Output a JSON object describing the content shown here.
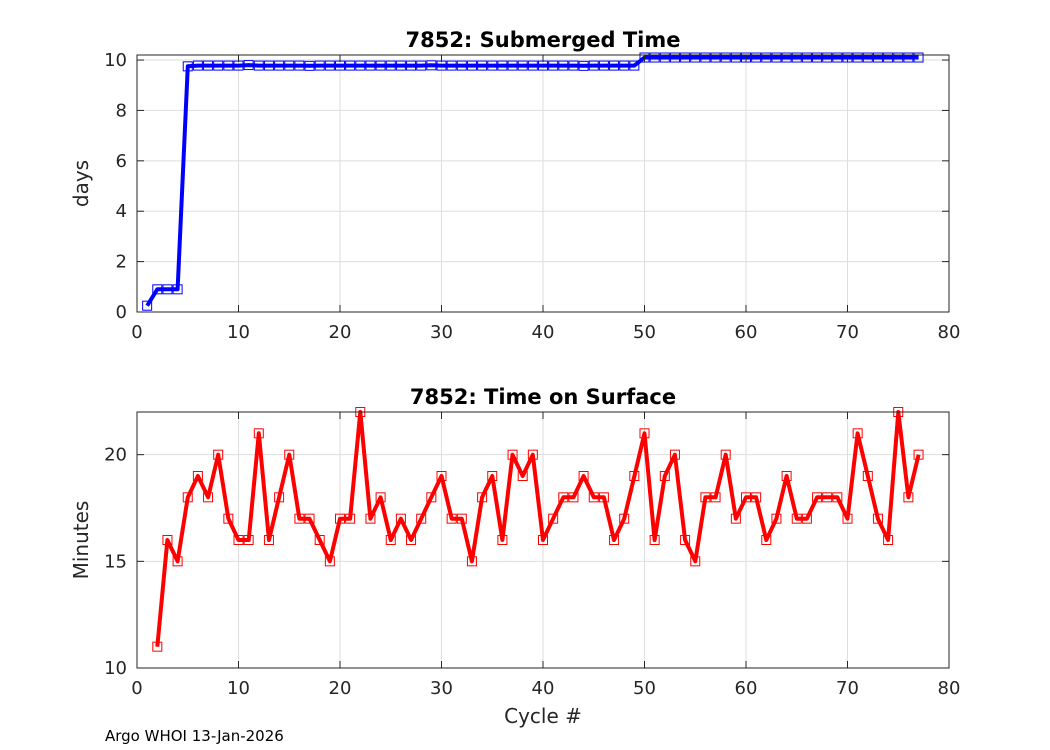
{
  "footer": "Argo WHOI 13-Jan-2026",
  "chart_data": [
    {
      "type": "line",
      "title": "7852: Submerged Time",
      "xlabel": "",
      "ylabel": "days",
      "xlim": [
        0,
        80
      ],
      "ylim": [
        0,
        10.2
      ],
      "xticks": [
        0,
        10,
        20,
        30,
        40,
        50,
        60,
        70,
        80
      ],
      "yticks": [
        0,
        2,
        4,
        6,
        8,
        10
      ],
      "grid": true,
      "color": "#0000ff",
      "marker": "square",
      "x": [
        1,
        2,
        3,
        4,
        5,
        6,
        7,
        8,
        9,
        10,
        11,
        12,
        13,
        14,
        15,
        16,
        17,
        18,
        19,
        20,
        21,
        22,
        23,
        24,
        25,
        26,
        27,
        28,
        29,
        30,
        31,
        32,
        33,
        34,
        35,
        36,
        37,
        38,
        39,
        40,
        41,
        42,
        43,
        44,
        45,
        46,
        47,
        48,
        49,
        50,
        51,
        52,
        53,
        54,
        55,
        56,
        57,
        58,
        59,
        60,
        61,
        62,
        63,
        64,
        65,
        66,
        67,
        68,
        69,
        70,
        71,
        72,
        73,
        74,
        75,
        76,
        77
      ],
      "y": [
        0.25,
        0.9,
        0.9,
        0.9,
        9.75,
        9.78,
        9.78,
        9.78,
        9.78,
        9.78,
        9.8,
        9.78,
        9.78,
        9.78,
        9.78,
        9.78,
        9.77,
        9.78,
        9.78,
        9.78,
        9.78,
        9.78,
        9.78,
        9.78,
        9.78,
        9.78,
        9.78,
        9.78,
        9.79,
        9.78,
        9.78,
        9.78,
        9.78,
        9.78,
        9.78,
        9.78,
        9.78,
        9.78,
        9.78,
        9.78,
        9.78,
        9.78,
        9.78,
        9.77,
        9.78,
        9.78,
        9.78,
        9.78,
        9.78,
        10.1,
        10.1,
        10.1,
        10.1,
        10.1,
        10.1,
        10.1,
        10.1,
        10.1,
        10.1,
        10.1,
        10.1,
        10.1,
        10.1,
        10.1,
        10.1,
        10.1,
        10.1,
        10.1,
        10.1,
        10.1,
        10.1,
        10.1,
        10.1,
        10.1,
        10.1,
        10.1,
        10.1
      ]
    },
    {
      "type": "line",
      "title": "7852: Time on Surface",
      "xlabel": "Cycle #",
      "ylabel": "Minutes",
      "xlim": [
        0,
        80
      ],
      "ylim": [
        10,
        22
      ],
      "xticks": [
        0,
        10,
        20,
        30,
        40,
        50,
        60,
        70,
        80
      ],
      "yticks": [
        10,
        15,
        20
      ],
      "grid": true,
      "color": "#ff0000",
      "marker": "square",
      "x": [
        2,
        3,
        4,
        5,
        6,
        7,
        8,
        9,
        10,
        11,
        12,
        13,
        14,
        15,
        16,
        17,
        18,
        19,
        20,
        21,
        22,
        23,
        24,
        25,
        26,
        27,
        28,
        29,
        30,
        31,
        32,
        33,
        34,
        35,
        36,
        37,
        38,
        39,
        40,
        41,
        42,
        43,
        44,
        45,
        46,
        47,
        48,
        49,
        50,
        51,
        52,
        53,
        54,
        55,
        56,
        57,
        58,
        59,
        60,
        61,
        62,
        63,
        64,
        65,
        66,
        67,
        68,
        69,
        70,
        71,
        72,
        73,
        74,
        75,
        76,
        77
      ],
      "y": [
        11,
        16,
        15,
        18,
        19,
        18,
        20,
        17,
        16,
        16,
        21,
        16,
        18,
        20,
        17,
        17,
        16,
        15,
        17,
        17,
        22,
        17,
        18,
        16,
        17,
        16,
        17,
        18,
        19,
        17,
        17,
        15,
        18,
        19,
        16,
        20,
        19,
        20,
        16,
        17,
        18,
        18,
        19,
        18,
        18,
        16,
        17,
        19,
        21,
        16,
        19,
        20,
        16,
        15,
        18,
        18,
        20,
        17,
        18,
        18,
        16,
        17,
        19,
        17,
        17,
        18,
        18,
        18,
        17,
        21,
        19,
        17,
        16,
        22,
        18,
        20
      ]
    }
  ]
}
